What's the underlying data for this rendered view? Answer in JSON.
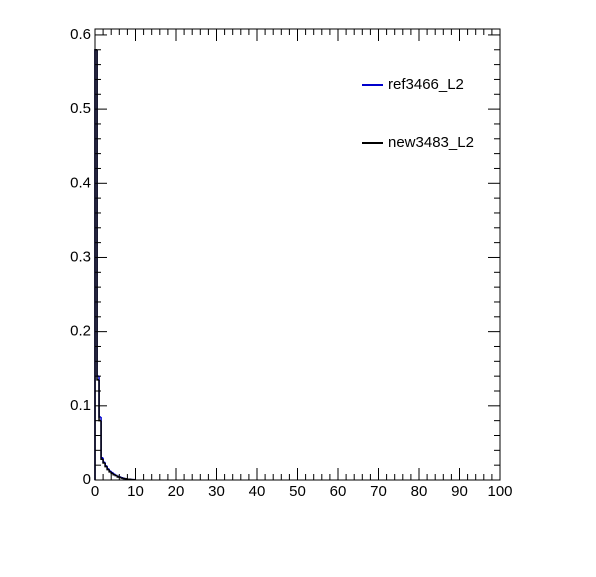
{
  "chart_data": {
    "type": "histogram",
    "bins": [
      0,
      0.5,
      1,
      1.5,
      2,
      2.5,
      3,
      3.5,
      4,
      4.5,
      5,
      5.5,
      6,
      6.5,
      7,
      7.5,
      8,
      8.5,
      9,
      9.5,
      10
    ],
    "series": [
      {
        "name": "ref3466_L2",
        "color": "#0000cc",
        "values": [
          0.58,
          0.14,
          0.085,
          0.03,
          0.024,
          0.019,
          0.015,
          0.012,
          0.01,
          0.008,
          0.006,
          0.005,
          0.004,
          0.003,
          0.002,
          0.0015,
          0.001,
          0.001,
          0.0005,
          0.0005
        ]
      },
      {
        "name": "new3483_L2",
        "color": "#000000",
        "values": [
          0.58,
          0.135,
          0.08,
          0.028,
          0.023,
          0.018,
          0.014,
          0.011,
          0.009,
          0.007,
          0.006,
          0.004,
          0.0035,
          0.0025,
          0.002,
          0.0015,
          0.001,
          0.0008,
          0.0005,
          0.0004
        ]
      }
    ],
    "xlim": [
      0,
      100
    ],
    "xticks": [
      0,
      10,
      20,
      30,
      40,
      50,
      60,
      70,
      80,
      90,
      100
    ],
    "ylim": [
      0,
      0.608
    ],
    "yticks": [
      0,
      0.1,
      0.2,
      0.3,
      0.4,
      0.5,
      0.6
    ]
  }
}
